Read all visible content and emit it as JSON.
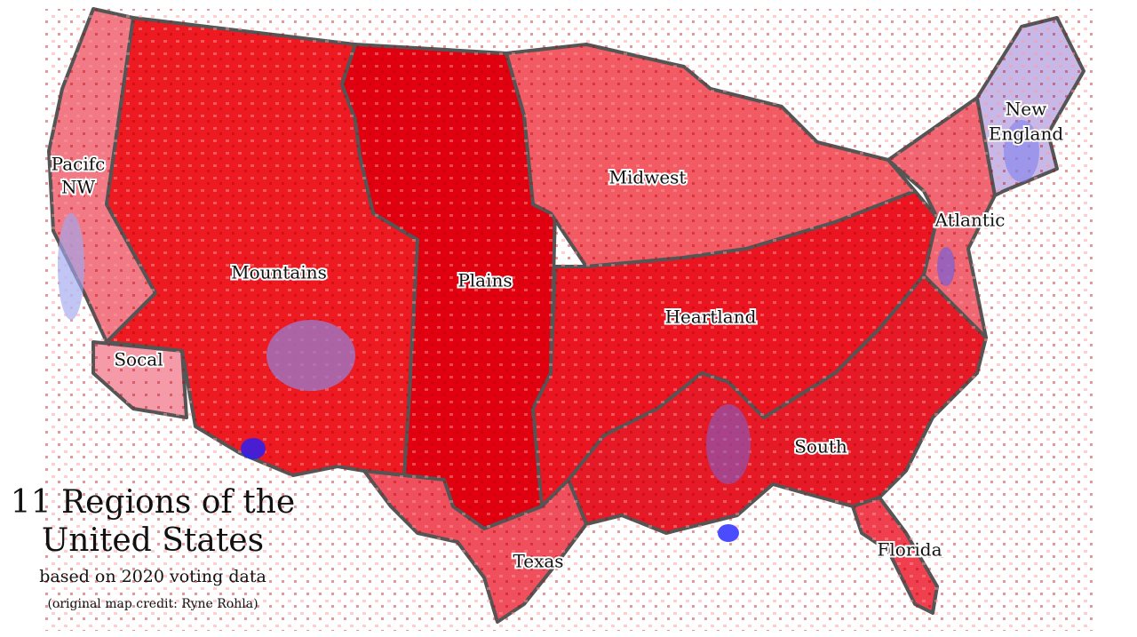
{
  "title": {
    "line1": "11 Regions of the",
    "line2": "United States",
    "subtitle": "based on 2020 voting data",
    "credit": "(original map credit: Ryne Rohla)"
  },
  "regions": [
    {
      "label": [
        "Pacifc",
        "NW"
      ]
    },
    {
      "label": [
        "Mountains"
      ]
    },
    {
      "label": [
        "Socal"
      ]
    },
    {
      "label": [
        "Plains"
      ]
    },
    {
      "label": [
        "Midwest"
      ]
    },
    {
      "label": [
        "Heartland"
      ]
    },
    {
      "label": [
        "New",
        "England"
      ]
    },
    {
      "label": [
        "Atlantic"
      ]
    },
    {
      "label": [
        "South"
      ]
    },
    {
      "label": [
        "Florida"
      ]
    },
    {
      "label": [
        "Texas"
      ]
    }
  ]
}
